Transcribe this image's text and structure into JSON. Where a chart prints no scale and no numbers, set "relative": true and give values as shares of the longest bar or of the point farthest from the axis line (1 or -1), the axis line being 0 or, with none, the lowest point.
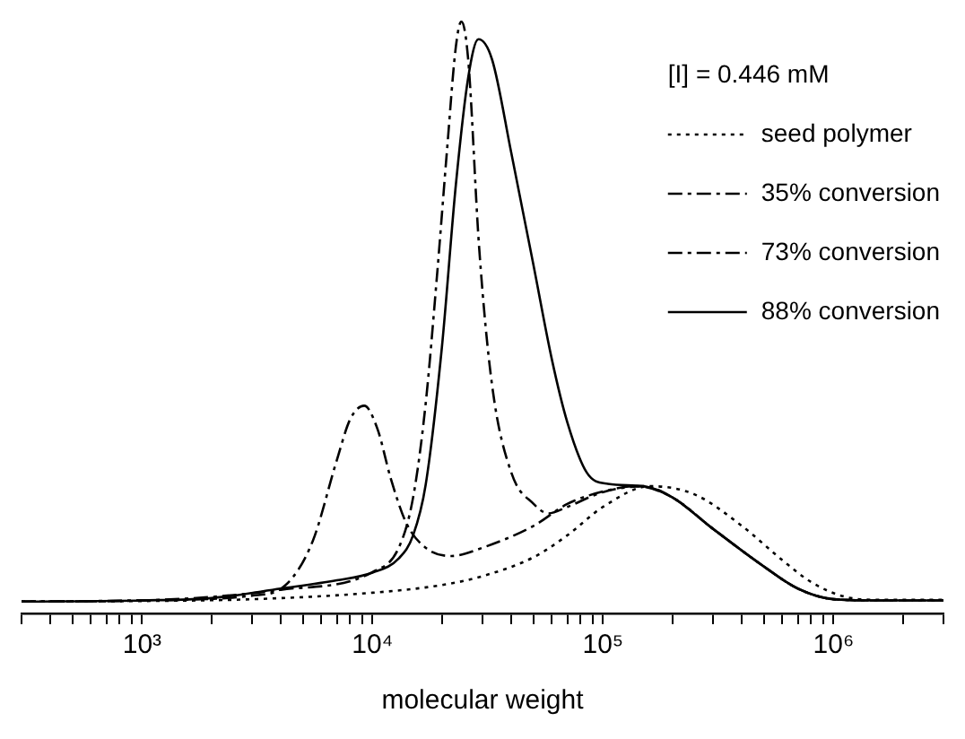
{
  "chart_data": {
    "type": "line",
    "relative": true,
    "log": "x",
    "xlabel": "molecular weight",
    "legend_title": "[I] = 0.446 mM",
    "legend": "top right",
    "grid": false,
    "marker": "none",
    "tick_labels": "x",
    "xlim": [
      300,
      3000000
    ],
    "xticks": [
      {
        "value": 300,
        "label": null
      },
      {
        "value": 400,
        "label": null
      },
      {
        "value": 500,
        "label": null
      },
      {
        "value": 600,
        "label": null
      },
      {
        "value": 700,
        "label": null
      },
      {
        "value": 800,
        "label": null
      },
      {
        "value": 900,
        "label": null
      },
      {
        "value": 1000,
        "label": "10³"
      },
      {
        "value": 2000,
        "label": null
      },
      {
        "value": 3000,
        "label": null
      },
      {
        "value": 4000,
        "label": null
      },
      {
        "value": 5000,
        "label": null
      },
      {
        "value": 6000,
        "label": null
      },
      {
        "value": 7000,
        "label": null
      },
      {
        "value": 8000,
        "label": null
      },
      {
        "value": 9000,
        "label": null
      },
      {
        "value": 10000,
        "label": "10⁴"
      },
      {
        "value": 20000,
        "label": null
      },
      {
        "value": 30000,
        "label": null
      },
      {
        "value": 40000,
        "label": null
      },
      {
        "value": 50000,
        "label": null
      },
      {
        "value": 60000,
        "label": null
      },
      {
        "value": 70000,
        "label": null
      },
      {
        "value": 80000,
        "label": null
      },
      {
        "value": 90000,
        "label": null
      },
      {
        "value": 100000,
        "label": "10⁵"
      },
      {
        "value": 200000,
        "label": null
      },
      {
        "value": 300000,
        "label": null
      },
      {
        "value": 400000,
        "label": null
      },
      {
        "value": 500000,
        "label": null
      },
      {
        "value": 600000,
        "label": null
      },
      {
        "value": 700000,
        "label": null
      },
      {
        "value": 800000,
        "label": null
      },
      {
        "value": 900000,
        "label": null
      },
      {
        "value": 1000000,
        "label": "10⁶"
      },
      {
        "value": 2000000,
        "label": null
      },
      {
        "value": 3000000,
        "label": null
      }
    ],
    "series": [
      {
        "name": "seed polymer",
        "color": "#000000",
        "line_style": "dotted",
        "x": [
          300,
          1000,
          3000,
          10000,
          20000,
          30000,
          50000,
          70000,
          100000,
          160000,
          250000,
          400000,
          600000,
          800000,
          1100000,
          1500000,
          3000000
        ],
        "values": [
          0.02,
          0.021,
          0.024,
          0.035,
          0.048,
          0.063,
          0.095,
          0.132,
          0.18,
          0.215,
          0.201,
          0.148,
          0.09,
          0.053,
          0.029,
          0.023,
          0.023
        ]
      },
      {
        "name": "35% conversion",
        "color": "#000000",
        "line_style": "dashed",
        "x": [
          300,
          1000,
          3000,
          4200,
          5500,
          7000,
          8000,
          9200,
          10500,
          12000,
          14000,
          17000,
          22000,
          30000,
          50000,
          70000,
          100000,
          140000,
          200000,
          300000,
          500000,
          700000,
          1000000,
          1500000,
          3000000
        ],
        "values": [
          0.02,
          0.022,
          0.03,
          0.048,
          0.122,
          0.259,
          0.328,
          0.351,
          0.312,
          0.228,
          0.153,
          0.111,
          0.097,
          0.111,
          0.148,
          0.185,
          0.206,
          0.215,
          0.196,
          0.143,
          0.079,
          0.042,
          0.024,
          0.022,
          0.022
        ]
      },
      {
        "name": "73% conversion",
        "color": "#000000",
        "line_style": "dashed",
        "x": [
          300,
          1000,
          4000,
          10000,
          13000,
          15000,
          17000,
          19000,
          21000,
          23000,
          24300,
          26000,
          29000,
          33000,
          40000,
          50000,
          58000,
          70000,
          100000,
          150000,
          200000,
          300000,
          500000,
          700000,
          1000000,
          1500000,
          3000000
        ],
        "values": [
          0.02,
          0.022,
          0.04,
          0.07,
          0.111,
          0.196,
          0.354,
          0.566,
          0.778,
          0.958,
          1,
          0.936,
          0.619,
          0.386,
          0.238,
          0.185,
          0.169,
          0.18,
          0.205,
          0.215,
          0.196,
          0.143,
          0.079,
          0.042,
          0.024,
          0.022,
          0.022
        ]
      },
      {
        "name": "88% conversion",
        "color": "#000000",
        "line_style": "solid",
        "x": [
          300,
          1000,
          2000,
          4000,
          7000,
          10000,
          13000,
          15000,
          17000,
          20000,
          23000,
          26000,
          28800,
          33000,
          40000,
          50000,
          60000,
          70000,
          85000,
          105000,
          150000,
          200000,
          300000,
          500000,
          700000,
          1000000,
          1500000,
          3000000
        ],
        "values": [
          0.02,
          0.022,
          0.026,
          0.042,
          0.056,
          0.069,
          0.093,
          0.132,
          0.217,
          0.45,
          0.725,
          0.905,
          0.97,
          0.936,
          0.778,
          0.587,
          0.429,
          0.323,
          0.238,
          0.219,
          0.215,
          0.196,
          0.143,
          0.079,
          0.042,
          0.024,
          0.022,
          0.022
        ]
      }
    ]
  }
}
